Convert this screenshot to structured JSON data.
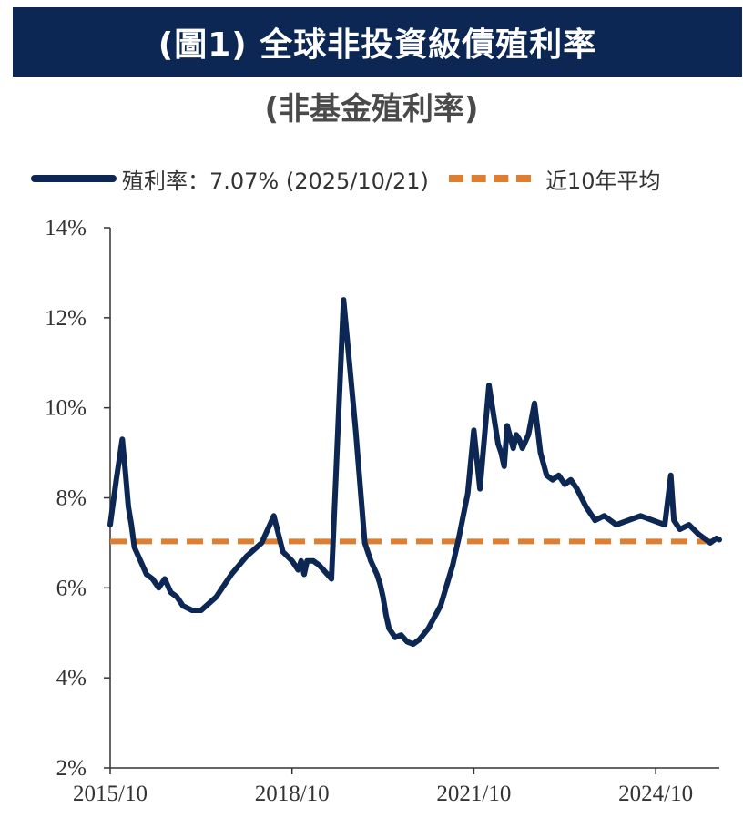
{
  "header": {
    "title": "(圖1) 全球非投資級債殖利率",
    "subtitle": "(非基金殖利率)"
  },
  "colors": {
    "banner": "#0c2753",
    "series": "#0c2753",
    "average": "#e07e2f"
  },
  "chart_data": {
    "type": "line",
    "title": "(圖1) 全球非投資級債殖利率",
    "subtitle": "(非基金殖利率)",
    "xlabel": "",
    "ylabel": "",
    "xlim": [
      2015.75,
      2025.8
    ],
    "ylim": [
      2,
      14
    ],
    "y_ticks": [
      2,
      4,
      6,
      8,
      10,
      12,
      14
    ],
    "y_tick_labels": [
      "2%",
      "4%",
      "6%",
      "8%",
      "10%",
      "12%",
      "14%"
    ],
    "x_ticks": [
      2015.75,
      2018.75,
      2021.75,
      2024.75
    ],
    "x_tick_labels": [
      "2015/10",
      "2018/10",
      "2021/10",
      "2024/10"
    ],
    "grid": false,
    "legend_position": "top",
    "series": [
      {
        "name": "殖利率：7.07% (2025/10/21)",
        "x": [
          2015.75,
          2015.85,
          2015.95,
          2016.0,
          2016.05,
          2016.1,
          2016.15,
          2016.25,
          2016.35,
          2016.45,
          2016.55,
          2016.65,
          2016.75,
          2016.85,
          2016.95,
          2017.1,
          2017.25,
          2017.5,
          2017.75,
          2018.0,
          2018.25,
          2018.45,
          2018.6,
          2018.75,
          2018.85,
          2018.9,
          2018.95,
          2019.0,
          2019.1,
          2019.2,
          2019.4,
          2019.6,
          2019.8,
          2019.95,
          2020.05,
          2020.15,
          2020.2,
          2020.25,
          2020.3,
          2020.35,
          2020.45,
          2020.55,
          2020.65,
          2020.75,
          2020.85,
          2021.0,
          2021.2,
          2021.4,
          2021.5,
          2021.65,
          2021.75,
          2021.85,
          2022.0,
          2022.15,
          2022.2,
          2022.25,
          2022.3,
          2022.4,
          2022.45,
          2022.5,
          2022.55,
          2022.65,
          2022.75,
          2022.85,
          2022.95,
          2023.05,
          2023.15,
          2023.25,
          2023.35,
          2023.45,
          2023.6,
          2023.75,
          2023.9,
          2024.1,
          2024.3,
          2024.5,
          2024.7,
          2024.9,
          2025.0,
          2025.05,
          2025.15,
          2025.3,
          2025.45,
          2025.55,
          2025.65,
          2025.75,
          2025.8
        ],
        "values": [
          7.4,
          8.4,
          9.3,
          8.6,
          7.8,
          7.4,
          6.9,
          6.6,
          6.3,
          6.2,
          6.0,
          6.2,
          5.9,
          5.8,
          5.6,
          5.5,
          5.5,
          5.8,
          6.3,
          6.7,
          7.0,
          7.6,
          6.8,
          6.6,
          6.4,
          6.6,
          6.3,
          6.6,
          6.6,
          6.5,
          6.2,
          12.4,
          9.5,
          7.0,
          6.6,
          6.3,
          6.1,
          5.8,
          5.4,
          5.1,
          4.9,
          4.95,
          4.8,
          4.75,
          4.85,
          5.1,
          5.6,
          6.5,
          7.1,
          8.1,
          9.5,
          8.2,
          10.5,
          9.2,
          9.0,
          8.7,
          9.6,
          9.1,
          9.4,
          9.3,
          9.1,
          9.4,
          10.1,
          9.0,
          8.5,
          8.4,
          8.5,
          8.3,
          8.4,
          8.2,
          7.8,
          7.5,
          7.6,
          7.4,
          7.5,
          7.6,
          7.5,
          7.4,
          8.5,
          7.5,
          7.3,
          7.4,
          7.2,
          7.1,
          7.0,
          7.1,
          7.07
        ]
      },
      {
        "name": "近10年平均",
        "x": [
          2015.75,
          2025.8
        ],
        "values": [
          7.03,
          7.03
        ]
      }
    ]
  }
}
